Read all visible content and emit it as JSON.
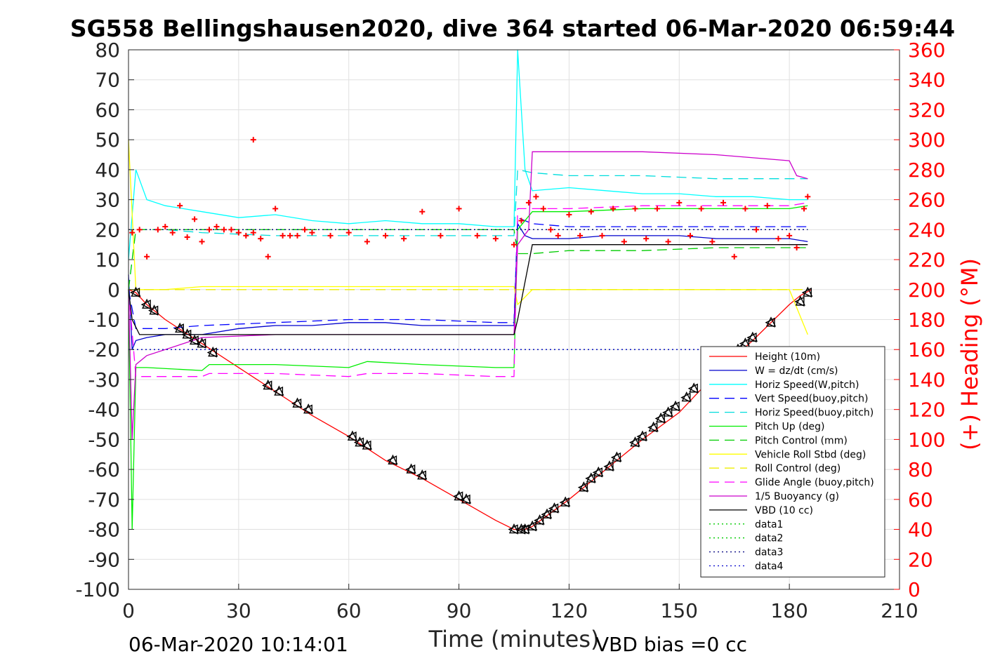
{
  "chart_data": {
    "type": "line",
    "title": "SG558 Bellingshausen2020, dive 364 started 06-Mar-2020 06:59:44",
    "xlabel": "Time (minutes)",
    "ylabel": "",
    "ylabel_right": "(+) Heading (°M)",
    "xlim": [
      0,
      210
    ],
    "ylim": [
      -100,
      80
    ],
    "ylim_right": [
      0,
      360
    ],
    "x_ticks": [
      "0",
      "30",
      "60",
      "90",
      "120",
      "150",
      "180",
      "210"
    ],
    "y_ticks": [
      "-100",
      "-90",
      "-80",
      "-70",
      "-60",
      "-50",
      "-40",
      "-30",
      "-20",
      "-10",
      "0",
      "10",
      "20",
      "30",
      "40",
      "50",
      "60",
      "70",
      "80"
    ],
    "y_ticks_right": [
      "0",
      "20",
      "40",
      "60",
      "80",
      "100",
      "120",
      "140",
      "160",
      "180",
      "200",
      "220",
      "240",
      "260",
      "280",
      "300",
      "320",
      "340",
      "360"
    ],
    "grid": true,
    "legend_position": "lower-right",
    "footer_left": "06-Mar-2020 10:14:01",
    "footer_right": "VBD bias =0 cc",
    "series": [
      {
        "name": "Height (10m)",
        "color": "#ff0000",
        "dash": "solid",
        "x": [
          0,
          2,
          5,
          10,
          20,
          30,
          40,
          50,
          60,
          70,
          80,
          90,
          100,
          105,
          108,
          110,
          120,
          130,
          140,
          150,
          160,
          170,
          180,
          183,
          186
        ],
        "y": [
          0,
          -1,
          -5,
          -10,
          -18,
          -26,
          -34,
          -42,
          -49,
          -57,
          -63,
          -70,
          -77,
          -80,
          -80,
          -79,
          -70,
          -60,
          -50,
          -41,
          -28,
          -17,
          -5,
          -2,
          0
        ]
      },
      {
        "name": "W = dz/dt (cm/s)",
        "color": "#0000cc",
        "dash": "solid",
        "x": [
          0,
          1,
          2,
          5,
          10,
          20,
          30,
          40,
          50,
          60,
          70,
          80,
          90,
          100,
          105,
          106,
          108,
          110,
          120,
          130,
          140,
          150,
          160,
          170,
          180,
          185
        ],
        "y": [
          5,
          -20,
          -17,
          -16,
          -15,
          -15,
          -13,
          -12,
          -12,
          -11,
          -11,
          -12,
          -12,
          -12,
          -12,
          22,
          18,
          17,
          17,
          18,
          18,
          18,
          17,
          17,
          17,
          16
        ]
      },
      {
        "name": "Horiz Speed(W,pitch)",
        "color": "#00ffff",
        "dash": "solid",
        "x": [
          0,
          2,
          5,
          10,
          20,
          30,
          40,
          50,
          60,
          70,
          80,
          90,
          100,
          105,
          106,
          108,
          110,
          120,
          130,
          140,
          150,
          160,
          170,
          180,
          185
        ],
        "y": [
          10,
          40,
          30,
          28,
          26,
          24,
          25,
          23,
          22,
          23,
          22,
          22,
          21,
          21,
          80,
          40,
          33,
          34,
          33,
          32,
          32,
          31,
          31,
          30,
          30
        ]
      },
      {
        "name": "Vert Speed(buoy,pitch)",
        "color": "#0000ff",
        "dash": "dashed",
        "x": [
          0,
          2,
          10,
          20,
          40,
          60,
          80,
          100,
          105,
          106,
          110,
          120,
          140,
          160,
          180,
          185
        ],
        "y": [
          0,
          -13,
          -13,
          -12,
          -11,
          -10,
          -10,
          -11,
          -11,
          24,
          22,
          21,
          21,
          21,
          21,
          21
        ]
      },
      {
        "name": "Horiz Speed(buoy,pitch)",
        "color": "#00dddd",
        "dash": "dashed",
        "x": [
          0,
          2,
          10,
          20,
          40,
          60,
          80,
          100,
          105,
          106,
          110,
          120,
          140,
          160,
          180,
          185
        ],
        "y": [
          0,
          20,
          20,
          19,
          18,
          18,
          18,
          18,
          18,
          40,
          39,
          38,
          38,
          37,
          37,
          37
        ]
      },
      {
        "name": "Pitch Up (deg)",
        "color": "#00ee00",
        "dash": "solid",
        "x": [
          0,
          1,
          2,
          5,
          20,
          22,
          40,
          60,
          65,
          80,
          100,
          105,
          106,
          110,
          120,
          140,
          160,
          180,
          185
        ],
        "y": [
          0,
          -80,
          -26,
          -26,
          -27,
          -25,
          -25,
          -26,
          -24,
          -25,
          -26,
          -26,
          20,
          26,
          26,
          27,
          27,
          27,
          28
        ]
      },
      {
        "name": "Pitch Control (mm)",
        "color": "#00cc00",
        "dash": "dashed",
        "x": [
          0,
          2,
          20,
          40,
          60,
          80,
          100,
          105,
          106,
          110,
          120,
          140,
          160,
          180,
          185
        ],
        "y": [
          0,
          20,
          20,
          20,
          20,
          20,
          20,
          20,
          12,
          12,
          13,
          13,
          14,
          14,
          14
        ]
      },
      {
        "name": "Vehicle Roll Stbd (deg)",
        "color": "#ffff00",
        "dash": "solid",
        "x": [
          0,
          2,
          10,
          20,
          40,
          60,
          80,
          100,
          105,
          106,
          110,
          120,
          140,
          160,
          180,
          185
        ],
        "y": [
          50,
          0,
          0,
          1,
          1,
          1,
          1,
          1,
          1,
          -5,
          0,
          0,
          0,
          0,
          0,
          -15
        ]
      },
      {
        "name": "Roll Control (deg)",
        "color": "#eeee00",
        "dash": "dashed",
        "x": [
          0,
          2,
          10,
          20,
          40,
          60,
          80,
          100,
          105,
          106,
          110,
          120,
          140,
          160,
          180,
          185
        ],
        "y": [
          0,
          0,
          0,
          0,
          0,
          0,
          0,
          0,
          0,
          0,
          0,
          0,
          0,
          0,
          0,
          0
        ]
      },
      {
        "name": "Glide Angle (buoy,pitch)",
        "color": "#ff00ff",
        "dash": "dashed",
        "x": [
          0,
          2,
          20,
          22,
          40,
          60,
          65,
          80,
          100,
          105,
          106,
          110,
          120,
          140,
          160,
          180,
          185
        ],
        "y": [
          0,
          -29,
          -29,
          -28,
          -28,
          -29,
          -28,
          -28,
          -29,
          -29,
          27,
          27,
          27,
          28,
          28,
          28,
          29
        ]
      },
      {
        "name": "1/5 Buoyancy (g)",
        "color": "#cc00cc",
        "dash": "solid",
        "x": [
          0,
          1,
          2,
          5,
          20,
          40,
          60,
          80,
          100,
          105,
          106,
          109,
          110,
          120,
          140,
          160,
          180,
          182,
          185
        ],
        "y": [
          0,
          -50,
          -25,
          -22,
          -16,
          -15,
          -15,
          -15,
          -15,
          -15,
          15,
          20,
          46,
          46,
          46,
          45,
          43,
          38,
          37
        ]
      },
      {
        "name": "VBD (10 cc)",
        "color": "#000000",
        "dash": "solid",
        "x": [
          0,
          1,
          3,
          10,
          20,
          40,
          60,
          80,
          100,
          105,
          106,
          110,
          120,
          140,
          160,
          180,
          185
        ],
        "y": [
          0,
          -10,
          -15,
          -15,
          -15,
          -15,
          -15,
          -15,
          -15,
          -15,
          -10,
          15,
          15,
          15,
          15,
          15,
          15
        ]
      },
      {
        "name": "data1",
        "color": "#00cc00",
        "dash": "dotted",
        "x": [
          0,
          185
        ],
        "y": [
          20,
          20
        ]
      },
      {
        "name": "data2",
        "color": "#00cc00",
        "dash": "dotted",
        "x": [
          0,
          185
        ],
        "y": [
          -20,
          -20
        ]
      },
      {
        "name": "data3",
        "color": "#000080",
        "dash": "dotted",
        "x": [
          0,
          185
        ],
        "y": [
          20,
          20
        ]
      },
      {
        "name": "data4",
        "color": "#0000cc",
        "dash": "dotted",
        "x": [
          0,
          185
        ],
        "y": [
          -20,
          -20
        ]
      }
    ],
    "heading_points": {
      "color": "#ff0000",
      "x": [
        1,
        3,
        5,
        8,
        10,
        12,
        14,
        16,
        18,
        20,
        22,
        24,
        26,
        28,
        30,
        32,
        34,
        36,
        38,
        40,
        42,
        44,
        46,
        48,
        50,
        55,
        60,
        65,
        70,
        75,
        80,
        85,
        90,
        95,
        100,
        105,
        107,
        109,
        111,
        113,
        115,
        117,
        120,
        123,
        126,
        129,
        132,
        135,
        138,
        141,
        144,
        147,
        150,
        153,
        156,
        159,
        162,
        165,
        168,
        171,
        174,
        177,
        180,
        182,
        184,
        185,
        34
      ],
      "y": [
        238,
        240,
        222,
        240,
        242,
        238,
        256,
        235,
        247,
        232,
        240,
        242,
        240,
        240,
        238,
        236,
        238,
        234,
        222,
        254,
        236,
        236,
        236,
        240,
        238,
        236,
        238,
        232,
        236,
        234,
        252,
        236,
        254,
        236,
        234,
        230,
        246,
        258,
        262,
        254,
        240,
        236,
        250,
        236,
        252,
        236,
        254,
        232,
        254,
        234,
        254,
        232,
        258,
        236,
        254,
        232,
        258,
        222,
        254,
        240,
        256,
        234,
        236,
        228,
        254,
        262,
        300
      ]
    },
    "markers": {
      "color": "#000000",
      "x": [
        2,
        5,
        7,
        14,
        16,
        18,
        20,
        23,
        38,
        41,
        46,
        49,
        61,
        63,
        65,
        72,
        77,
        80,
        90,
        92,
        105,
        107,
        108,
        110,
        112,
        114,
        116,
        119,
        124,
        126,
        128,
        131,
        133,
        138,
        140,
        143,
        145,
        147,
        149,
        152,
        154,
        166,
        168,
        170,
        175,
        183,
        185
      ],
      "y": [
        -1,
        -5,
        -7,
        -13,
        -15,
        -17,
        -18,
        -21,
        -32,
        -34,
        -38,
        -40,
        -49,
        -51,
        -52,
        -57,
        -60,
        -62,
        -69,
        -70,
        -80,
        -80,
        -80,
        -79,
        -77,
        -75,
        -73,
        -71,
        -66,
        -63,
        -61,
        -59,
        -56,
        -51,
        -49,
        -46,
        -43,
        -41,
        -39,
        -36,
        -33,
        -20,
        -18,
        -16,
        -11,
        -4,
        -1
      ]
    }
  }
}
